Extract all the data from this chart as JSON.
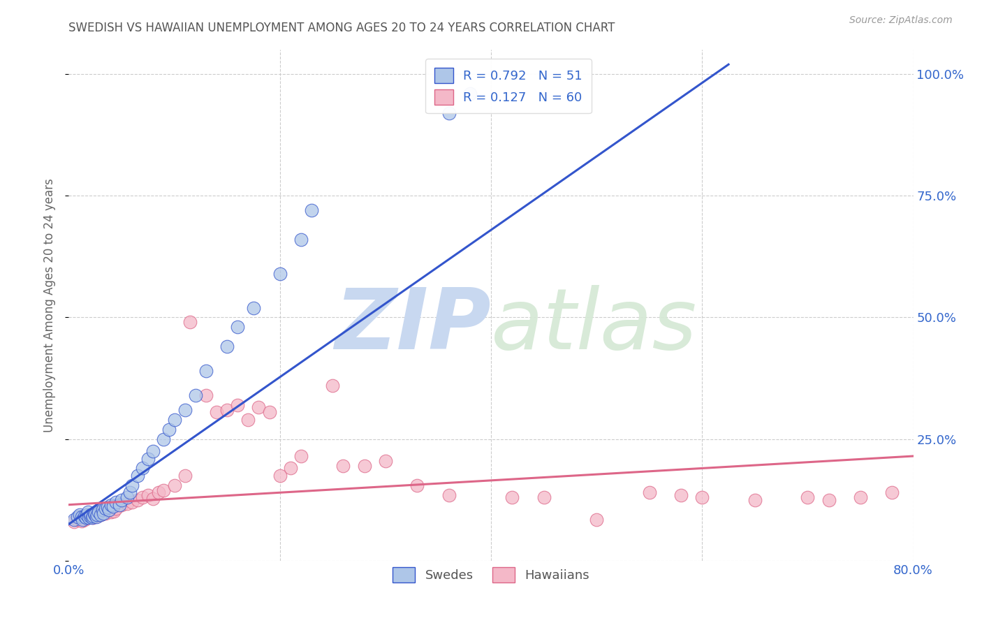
{
  "title": "SWEDISH VS HAWAIIAN UNEMPLOYMENT AMONG AGES 20 TO 24 YEARS CORRELATION CHART",
  "source": "Source: ZipAtlas.com",
  "ylabel": "Unemployment Among Ages 20 to 24 years",
  "xlim": [
    0.0,
    0.8
  ],
  "ylim": [
    0.0,
    1.05
  ],
  "yticks": [
    0.0,
    0.25,
    0.5,
    0.75,
    1.0
  ],
  "ytick_labels": [
    "",
    "25.0%",
    "50.0%",
    "75.0%",
    "100.0%"
  ],
  "title_color": "#555555",
  "source_color": "#999999",
  "watermark_zip": "ZIP",
  "watermark_atlas": "atlas",
  "watermark_color": "#c8d8f0",
  "swedish_color": "#aec6e8",
  "hawaiian_color": "#f4b8c8",
  "swedish_line_color": "#3355cc",
  "hawaiian_line_color": "#dd6688",
  "legend_R_swedish": "R = 0.792",
  "legend_N_swedish": "N = 51",
  "legend_R_hawaiian": "R = 0.127",
  "legend_N_hawaiian": "N = 60",
  "legend_color": "#3366cc",
  "swedes_label": "Swedes",
  "hawaiians_label": "Hawaiians",
  "grid_color": "#cccccc",
  "background_color": "#ffffff",
  "sw_line_x0": 0.0,
  "sw_line_y0": 0.075,
  "sw_line_x1": 0.625,
  "sw_line_y1": 1.02,
  "hw_line_x0": 0.0,
  "hw_line_y0": 0.115,
  "hw_line_x1": 0.8,
  "hw_line_y1": 0.215,
  "swedish_x": [
    0.005,
    0.008,
    0.01,
    0.012,
    0.013,
    0.015,
    0.016,
    0.017,
    0.018,
    0.019,
    0.02,
    0.021,
    0.022,
    0.023,
    0.024,
    0.025,
    0.026,
    0.027,
    0.028,
    0.03,
    0.032,
    0.033,
    0.035,
    0.037,
    0.038,
    0.04,
    0.042,
    0.045,
    0.048,
    0.05,
    0.055,
    0.058,
    0.06,
    0.065,
    0.07,
    0.075,
    0.08,
    0.09,
    0.095,
    0.1,
    0.11,
    0.12,
    0.13,
    0.15,
    0.16,
    0.175,
    0.2,
    0.22,
    0.23,
    0.36,
    0.38
  ],
  "swedish_y": [
    0.085,
    0.09,
    0.095,
    0.09,
    0.085,
    0.092,
    0.088,
    0.095,
    0.1,
    0.088,
    0.092,
    0.095,
    0.088,
    0.092,
    0.098,
    0.095,
    0.09,
    0.095,
    0.1,
    0.095,
    0.105,
    0.098,
    0.108,
    0.11,
    0.105,
    0.115,
    0.112,
    0.12,
    0.115,
    0.125,
    0.13,
    0.14,
    0.155,
    0.175,
    0.19,
    0.21,
    0.225,
    0.25,
    0.27,
    0.29,
    0.31,
    0.34,
    0.39,
    0.44,
    0.48,
    0.52,
    0.59,
    0.66,
    0.72,
    0.92,
    0.96
  ],
  "hawaiian_x": [
    0.005,
    0.008,
    0.01,
    0.012,
    0.013,
    0.015,
    0.017,
    0.018,
    0.02,
    0.022,
    0.023,
    0.025,
    0.027,
    0.028,
    0.03,
    0.032,
    0.035,
    0.037,
    0.04,
    0.043,
    0.045,
    0.05,
    0.055,
    0.06,
    0.065,
    0.07,
    0.075,
    0.08,
    0.085,
    0.09,
    0.1,
    0.11,
    0.115,
    0.13,
    0.14,
    0.15,
    0.16,
    0.17,
    0.18,
    0.19,
    0.2,
    0.21,
    0.22,
    0.25,
    0.26,
    0.28,
    0.3,
    0.33,
    0.36,
    0.42,
    0.45,
    0.5,
    0.55,
    0.58,
    0.6,
    0.65,
    0.7,
    0.72,
    0.75,
    0.78
  ],
  "hawaiian_y": [
    0.08,
    0.085,
    0.09,
    0.082,
    0.088,
    0.085,
    0.092,
    0.088,
    0.09,
    0.092,
    0.088,
    0.095,
    0.092,
    0.098,
    0.095,
    0.1,
    0.098,
    0.105,
    0.1,
    0.102,
    0.108,
    0.115,
    0.118,
    0.12,
    0.125,
    0.13,
    0.135,
    0.128,
    0.14,
    0.145,
    0.155,
    0.175,
    0.49,
    0.34,
    0.305,
    0.31,
    0.32,
    0.29,
    0.315,
    0.305,
    0.175,
    0.19,
    0.215,
    0.36,
    0.195,
    0.195,
    0.205,
    0.155,
    0.135,
    0.13,
    0.13,
    0.085,
    0.14,
    0.135,
    0.13,
    0.125,
    0.13,
    0.125,
    0.13,
    0.14
  ]
}
